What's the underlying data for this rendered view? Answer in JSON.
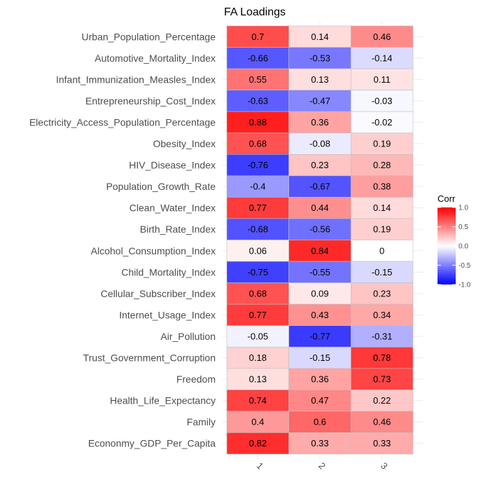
{
  "chart_data": {
    "type": "heatmap",
    "title": "FA Loadings",
    "xlabel": "",
    "ylabel": "",
    "columns": [
      "1",
      "2",
      "3"
    ],
    "rows": [
      "Urban_Population_Percentage",
      "Automotive_Mortality_Index",
      "Infant_Immunization_Measles_Index",
      "Entrepreneurship_Cost_Index",
      "Electricity_Access_Population_Percentage",
      "Obesity_Index",
      "HIV_Disease_Index",
      "Population_Growth_Rate",
      "Clean_Water_Index",
      "Birth_Rate_Index",
      "Alcohol_Consumption_Index",
      "Child_Mortality_Index",
      "Cellular_Subscriber_Index",
      "Internet_Usage_Index",
      "Air_Pollution",
      "Trust_Government_Corruption",
      "Freedom",
      "Health_Life_Expectancy",
      "Family",
      "Econonmy_GDP_Per_Capita"
    ],
    "values": [
      [
        0.7,
        0.14,
        0.46
      ],
      [
        -0.66,
        -0.53,
        -0.14
      ],
      [
        0.55,
        0.13,
        0.11
      ],
      [
        -0.63,
        -0.47,
        -0.03
      ],
      [
        0.88,
        0.36,
        -0.02
      ],
      [
        0.68,
        -0.08,
        0.19
      ],
      [
        -0.76,
        0.23,
        0.28
      ],
      [
        -0.4,
        -0.67,
        0.38
      ],
      [
        0.77,
        0.44,
        0.14
      ],
      [
        -0.68,
        -0.56,
        0.19
      ],
      [
        0.06,
        0.84,
        0
      ],
      [
        -0.75,
        -0.55,
        -0.15
      ],
      [
        0.68,
        0.09,
        0.23
      ],
      [
        0.77,
        0.43,
        0.34
      ],
      [
        -0.05,
        -0.77,
        -0.31
      ],
      [
        0.18,
        -0.15,
        0.78
      ],
      [
        0.13,
        0.36,
        0.73
      ],
      [
        0.74,
        0.47,
        0.22
      ],
      [
        0.4,
        0.6,
        0.46
      ],
      [
        0.82,
        0.33,
        0.33
      ]
    ],
    "legend": {
      "title": "Corr",
      "ticks": [
        "1.0",
        "0.5",
        "0.0",
        "-0.5",
        "-1.0"
      ],
      "tick_values": [
        1.0,
        0.5,
        0.0,
        -0.5,
        -1.0
      ],
      "range": [
        -1,
        1
      ],
      "placement": "right"
    },
    "colors": {
      "low": "#0000ff",
      "mid": "#ffffff",
      "high": "#ff0000",
      "tile_border": "#bebebe",
      "grid": "#ebebeb",
      "background": "#ffffff"
    },
    "grid": true
  }
}
